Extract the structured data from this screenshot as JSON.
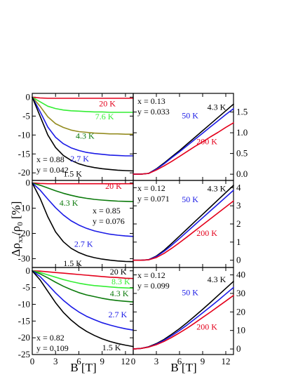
{
  "figure": {
    "ylabel": "Δρ_xx/ρ_0 [%]",
    "ylabel_parts": {
      "delta": "Δρ",
      "sub1": "xx",
      "slash": "/ρ",
      "sub2": "0",
      "unit": " [%]"
    },
    "xlabel_left": "B [T]",
    "xlabel_right": "B [T]"
  },
  "chart_data": [
    {
      "panel": "top-left",
      "type": "line",
      "xlim": [
        0,
        13
      ],
      "ylim": [
        -22,
        1
      ],
      "xticks": [
        0,
        3,
        6,
        9,
        12
      ],
      "yticks": [
        0,
        -5,
        -10,
        -15,
        -20
      ],
      "annotation": [
        "x = 0.88",
        "y = 0.042"
      ],
      "series": [
        {
          "name": "20 K",
          "color": "#e4001b",
          "x": [
            0,
            1,
            2,
            3,
            4,
            5,
            6,
            7,
            8,
            9,
            10,
            11,
            12,
            13
          ],
          "y": [
            0,
            -0.2,
            -0.3,
            -0.3,
            -0.3,
            -0.3,
            -0.3,
            -0.3,
            -0.3,
            -0.3,
            -0.3,
            -0.3,
            -0.3,
            -0.3
          ]
        },
        {
          "name": "7.6 K",
          "color": "#33ee33",
          "x": [
            0,
            1,
            2,
            3,
            4,
            5,
            6,
            7,
            8,
            9,
            10,
            11,
            12,
            13
          ],
          "y": [
            0,
            -1.2,
            -2.4,
            -3.0,
            -3.4,
            -3.6,
            -3.7,
            -3.8,
            -3.9,
            -3.9,
            -4.0,
            -4.0,
            -4.0,
            -4.0
          ]
        },
        {
          "name": "4.3 K",
          "color": "#948c20",
          "x": [
            0,
            1,
            2,
            3,
            4,
            5,
            6,
            7,
            8,
            9,
            10,
            11,
            12,
            13
          ],
          "y": [
            0,
            -2.4,
            -5.2,
            -7.0,
            -8.0,
            -8.7,
            -9.1,
            -9.3,
            -9.5,
            -9.6,
            -9.7,
            -9.7,
            -9.8,
            -9.8
          ]
        },
        {
          "name": "2.7 K",
          "color": "#1a1ae6",
          "x": [
            0,
            1,
            2,
            3,
            4,
            5,
            6,
            7,
            8,
            9,
            10,
            11,
            12,
            13
          ],
          "y": [
            0,
            -3.8,
            -7.9,
            -10.6,
            -12.3,
            -13.4,
            -14.1,
            -14.6,
            -14.9,
            -15.1,
            -15.3,
            -15.4,
            -15.5,
            -15.5
          ]
        },
        {
          "name": "1.5 K",
          "color": "#000000",
          "x": [
            0,
            1,
            2,
            3,
            4,
            5,
            6,
            7,
            8,
            9,
            10,
            11,
            12,
            13
          ],
          "y": [
            0,
            -5.0,
            -10.0,
            -13.3,
            -15.4,
            -16.7,
            -17.6,
            -18.2,
            -18.6,
            -18.9,
            -19.1,
            -19.3,
            -19.4,
            -19.5
          ]
        }
      ],
      "labels": [
        {
          "text": "20 K",
          "color": "#e4001b",
          "x": 8.6,
          "y": -2.4
        },
        {
          "text": "7.6 K",
          "color": "#33ee33",
          "x": 8.1,
          "y": -5.9
        },
        {
          "text": "4.3 K",
          "color": "#0b7a0b",
          "x": 5.6,
          "y": -11.0
        },
        {
          "text": "2.7 K",
          "color": "#1a1ae6",
          "x": 4.9,
          "y": -17.0
        },
        {
          "text": "1.5 K",
          "color": "#000000",
          "x": 4.0,
          "y": -21.0
        }
      ]
    },
    {
      "panel": "top-right",
      "type": "line",
      "xlim": [
        0,
        13
      ],
      "ylim": [
        -0.15,
        1.95
      ],
      "xticks": [
        0,
        3,
        6,
        9,
        12
      ],
      "yticks": [
        0.0,
        0.5,
        1.0,
        1.5
      ],
      "annotation": [
        "x = 0.13",
        "y = 0.033"
      ],
      "series": [
        {
          "name": "4.3 K",
          "color": "#000000",
          "x": [
            0,
            1,
            2,
            3,
            4,
            5,
            6,
            7,
            8,
            9,
            10,
            11,
            12,
            13
          ],
          "y": [
            0,
            0,
            0.02,
            0.13,
            0.27,
            0.42,
            0.57,
            0.73,
            0.89,
            1.05,
            1.21,
            1.37,
            1.53,
            1.69
          ]
        },
        {
          "name": "50 K",
          "color": "#1a1ae6",
          "x": [
            0,
            1,
            2,
            3,
            4,
            5,
            6,
            7,
            8,
            9,
            10,
            11,
            12,
            13
          ],
          "y": [
            0,
            0,
            0.02,
            0.12,
            0.25,
            0.4,
            0.54,
            0.69,
            0.84,
            0.99,
            1.14,
            1.29,
            1.44,
            1.58
          ]
        },
        {
          "name": "200 K",
          "color": "#e4001b",
          "x": [
            0,
            1,
            2,
            3,
            4,
            5,
            6,
            7,
            8,
            9,
            10,
            11,
            12,
            13
          ],
          "y": [
            0,
            0,
            0.02,
            0.1,
            0.2,
            0.31,
            0.43,
            0.55,
            0.67,
            0.78,
            0.9,
            1.01,
            1.13,
            1.24
          ]
        }
      ],
      "labels": [
        {
          "text": "4.3 K",
          "color": "#000000",
          "x": 9.6,
          "y": 1.55
        },
        {
          "text": "50 K",
          "color": "#1a1ae6",
          "x": 6.3,
          "y": 1.35
        },
        {
          "text": "200 K",
          "color": "#e4001b",
          "x": 8.2,
          "y": 0.72
        }
      ]
    },
    {
      "panel": "middle-left",
      "type": "line",
      "xlim": [
        0,
        13
      ],
      "ylim": [
        -33.5,
        1
      ],
      "xticks": [
        0,
        3,
        6,
        9,
        12
      ],
      "yticks": [
        0,
        -10,
        -20,
        -30
      ],
      "annotation": [
        "x = 0.85",
        "y = 0.076"
      ],
      "series": [
        {
          "name": "20 K",
          "color": "#e4001b",
          "x": [
            0,
            1,
            2,
            3,
            4,
            5,
            6,
            7,
            8,
            9,
            10,
            11,
            12,
            13
          ],
          "y": [
            0,
            -0.2,
            -0.3,
            -0.3,
            -0.3,
            -0.3,
            -0.3,
            -0.3,
            -0.3,
            -0.3,
            -0.3,
            -0.3,
            -0.3,
            -0.3
          ]
        },
        {
          "name": "4.3 K",
          "color": "#0b7a0b",
          "x": [
            0,
            1,
            2,
            3,
            4,
            5,
            6,
            7,
            8,
            9,
            10,
            11,
            12,
            13
          ],
          "y": [
            0,
            -0.9,
            -2.0,
            -3.1,
            -4.1,
            -4.9,
            -5.6,
            -6.1,
            -6.5,
            -6.8,
            -7.0,
            -7.2,
            -7.3,
            -7.4
          ]
        },
        {
          "name": "2.7 K",
          "color": "#1a1ae6",
          "x": [
            0,
            1,
            2,
            3,
            4,
            5,
            6,
            7,
            8,
            9,
            10,
            11,
            12,
            13
          ],
          "y": [
            0,
            -2.8,
            -6.4,
            -9.8,
            -12.7,
            -15.0,
            -16.7,
            -18.0,
            -19.0,
            -19.7,
            -20.3,
            -20.7,
            -21.0,
            -21.2
          ]
        },
        {
          "name": "1.5 K",
          "color": "#000000",
          "x": [
            0,
            1,
            2,
            3,
            4,
            5,
            6,
            7,
            8,
            9,
            10,
            11,
            12,
            13
          ],
          "y": [
            0,
            -6.0,
            -13.4,
            -19.4,
            -23.3,
            -25.9,
            -27.6,
            -28.8,
            -29.6,
            -30.2,
            -30.6,
            -30.9,
            -31.1,
            -31.2
          ]
        }
      ],
      "labels": [
        {
          "text": "20 K",
          "color": "#e4001b",
          "x": 9.4,
          "y": -2.4
        },
        {
          "text": "4.3 K",
          "color": "#0b7a0b",
          "x": 3.5,
          "y": -9.0
        },
        {
          "text": "2.7 K",
          "color": "#1a1ae6",
          "x": 5.4,
          "y": -25.3
        },
        {
          "text": "1.5 K",
          "color": "#000000",
          "x": 4.0,
          "y": -33.0
        }
      ]
    },
    {
      "panel": "middle-right",
      "type": "line",
      "xlim": [
        0,
        13
      ],
      "ylim": [
        -0.4,
        4.4
      ],
      "xticks": [
        0,
        3,
        6,
        9,
        12
      ],
      "yticks": [
        0,
        1,
        2,
        3,
        4
      ],
      "annotation": [
        "x = 0.12",
        "y = 0.071"
      ],
      "series": [
        {
          "name": "4.3 K",
          "color": "#000000",
          "x": [
            0,
            1,
            2,
            3,
            4,
            5,
            6,
            7,
            8,
            9,
            10,
            11,
            12,
            13
          ],
          "y": [
            0,
            0,
            0.03,
            0.23,
            0.55,
            0.93,
            1.33,
            1.73,
            2.13,
            2.53,
            2.93,
            3.33,
            3.73,
            4.13
          ]
        },
        {
          "name": "50 K",
          "color": "#1a1ae6",
          "x": [
            0,
            1,
            2,
            3,
            4,
            5,
            6,
            7,
            8,
            9,
            10,
            11,
            12,
            13
          ],
          "y": [
            0,
            0,
            0.03,
            0.2,
            0.49,
            0.83,
            1.2,
            1.58,
            1.96,
            2.34,
            2.72,
            3.1,
            3.48,
            3.86
          ]
        },
        {
          "name": "200 K",
          "color": "#e4001b",
          "x": [
            0,
            1,
            2,
            3,
            4,
            5,
            6,
            7,
            8,
            9,
            10,
            11,
            12,
            13
          ],
          "y": [
            0,
            0,
            0.02,
            0.15,
            0.38,
            0.66,
            0.97,
            1.29,
            1.62,
            1.95,
            2.28,
            2.61,
            2.94,
            3.27
          ]
        }
      ],
      "labels": [
        {
          "text": "4.3 K",
          "color": "#000000",
          "x": 9.6,
          "y": 3.8
        },
        {
          "text": "50 K",
          "color": "#1a1ae6",
          "x": 6.3,
          "y": 3.2
        },
        {
          "text": "200 K",
          "color": "#e4001b",
          "x": 8.2,
          "y": 1.35
        }
      ]
    },
    {
      "panel": "bottom-left",
      "type": "line",
      "xlim": [
        0,
        13
      ],
      "ylim": [
        -25,
        1
      ],
      "xticks": [
        0,
        3,
        6,
        9,
        12
      ],
      "yticks": [
        0,
        -5,
        -10,
        -15,
        -20,
        -25
      ],
      "annotation": [
        "x = 0.82",
        "y = 0.109"
      ],
      "series": [
        {
          "name": "20 K",
          "color": "#e4001b",
          "x": [
            0,
            1,
            2,
            3,
            4,
            5,
            6,
            7,
            8,
            9,
            10,
            11,
            12,
            13
          ],
          "y": [
            0,
            -0.1,
            -0.3,
            -0.5,
            -0.7,
            -0.9,
            -1.1,
            -1.3,
            -1.5,
            -1.7,
            -1.9,
            -2.0,
            -2.2,
            -2.3
          ]
        },
        {
          "name": "8.3 K",
          "color": "#33ee33",
          "x": [
            0,
            1,
            2,
            3,
            4,
            5,
            6,
            7,
            8,
            9,
            10,
            11,
            12,
            13
          ],
          "y": [
            0,
            -0.5,
            -1.2,
            -1.9,
            -2.6,
            -3.2,
            -3.7,
            -4.1,
            -4.4,
            -4.6,
            -4.8,
            -5.0,
            -5.1,
            -5.2
          ]
        },
        {
          "name": "4.3 K",
          "color": "#0b7a0b",
          "x": [
            0,
            1,
            2,
            3,
            4,
            5,
            6,
            7,
            8,
            9,
            10,
            11,
            12,
            13
          ],
          "y": [
            0,
            -0.9,
            -2.1,
            -3.4,
            -4.6,
            -5.6,
            -6.5,
            -7.2,
            -7.7,
            -8.2,
            -8.6,
            -8.9,
            -9.1,
            -9.3
          ]
        },
        {
          "name": "2.7 K",
          "color": "#1a1ae6",
          "x": [
            0,
            1,
            2,
            3,
            4,
            5,
            6,
            7,
            8,
            9,
            10,
            11,
            12,
            13
          ],
          "y": [
            0,
            -1.7,
            -4.1,
            -6.6,
            -8.8,
            -10.7,
            -12.3,
            -13.6,
            -14.6,
            -15.5,
            -16.2,
            -16.8,
            -17.3,
            -17.7
          ]
        },
        {
          "name": "1.5 K",
          "color": "#000000",
          "x": [
            0,
            1,
            2,
            3,
            4,
            5,
            6,
            7,
            8,
            9,
            10,
            11,
            12,
            13
          ],
          "y": [
            0,
            -2.7,
            -6.1,
            -9.5,
            -12.4,
            -14.7,
            -16.6,
            -18.1,
            -19.3,
            -20.3,
            -21.1,
            -21.7,
            -22.2,
            -22.6
          ]
        }
      ],
      "labels": [
        {
          "text": "20 K",
          "color": "#000000",
          "x": 10.0,
          "y": -1.1
        },
        {
          "text": "8.3 K",
          "color": "#33ee33",
          "x": 10.2,
          "y": -4.0
        },
        {
          "text": "4.3 K",
          "color": "#0b7a0b",
          "x": 10.0,
          "y": -7.6
        },
        {
          "text": "2.7 K",
          "color": "#1a1ae6",
          "x": 9.8,
          "y": -13.9
        },
        {
          "text": "1.5 K",
          "color": "#000000",
          "x": 9.0,
          "y": -23.7
        }
      ]
    },
    {
      "panel": "bottom-right",
      "type": "line",
      "xlim": [
        0,
        13
      ],
      "ylim": [
        -3,
        44
      ],
      "xticks": [
        0,
        3,
        6,
        9,
        12
      ],
      "yticks": [
        0,
        10,
        20,
        30,
        40
      ],
      "annotation": [
        "x = 0.12",
        "y = 0.099"
      ],
      "series": [
        {
          "name": "4.3 K",
          "color": "#000000",
          "x": [
            0,
            1,
            2,
            3,
            4,
            5,
            6,
            7,
            8,
            9,
            10,
            11,
            12,
            13
          ],
          "y": [
            0,
            0.3,
            1.2,
            2.9,
            5.2,
            8.0,
            11.0,
            14.3,
            17.8,
            21.4,
            25.1,
            28.9,
            32.7,
            36.5
          ]
        },
        {
          "name": "50 K",
          "color": "#1a1ae6",
          "x": [
            0,
            1,
            2,
            3,
            4,
            5,
            6,
            7,
            8,
            9,
            10,
            11,
            12,
            13
          ],
          "y": [
            0,
            0.3,
            1.1,
            2.6,
            4.7,
            7.2,
            10.0,
            13.0,
            16.2,
            19.5,
            22.8,
            26.2,
            29.7,
            33.2
          ]
        },
        {
          "name": "200 K",
          "color": "#e4001b",
          "x": [
            0,
            1,
            2,
            3,
            4,
            5,
            6,
            7,
            8,
            9,
            10,
            11,
            12,
            13
          ],
          "y": [
            0,
            0.3,
            1.0,
            2.3,
            4.1,
            6.3,
            8.7,
            11.3,
            14.1,
            17.0,
            19.9,
            22.9,
            25.9,
            28.9
          ]
        }
      ],
      "labels": [
        {
          "text": "4.3 K",
          "color": "#000000",
          "x": 9.6,
          "y": 36.0
        },
        {
          "text": "50 K",
          "color": "#1a1ae6",
          "x": 6.3,
          "y": 29.0
        },
        {
          "text": "200 K",
          "color": "#e4001b",
          "x": 8.2,
          "y": 10.5
        }
      ]
    }
  ]
}
